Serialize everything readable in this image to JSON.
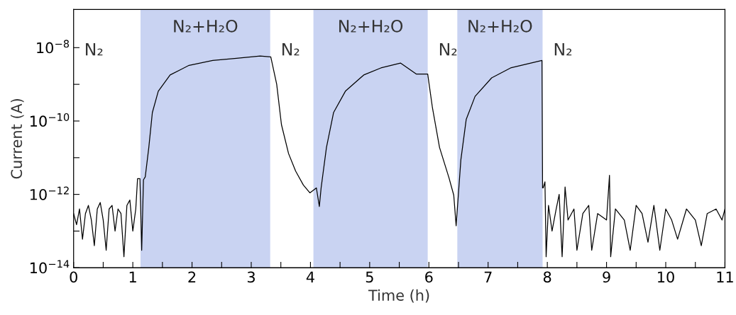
{
  "chart_data": {
    "type": "line",
    "xlabel": "Time (h)",
    "ylabel": "Current (A)",
    "log": "y",
    "xlim": [
      0,
      11
    ],
    "ylim": [
      1e-14,
      1.1e-07
    ],
    "xticks": [
      0,
      {
        "value": 0.5,
        "label": null
      },
      1,
      {
        "value": 1.5,
        "label": null
      },
      2,
      {
        "value": 2.5,
        "label": null
      },
      3,
      {
        "value": 3.5,
        "label": null
      },
      4,
      {
        "value": 4.5,
        "label": null
      },
      5,
      {
        "value": 5.5,
        "label": null
      },
      6,
      {
        "value": 6.5,
        "label": null
      },
      7,
      {
        "value": 7.5,
        "label": null
      },
      8,
      {
        "value": 8.5,
        "label": null
      },
      9,
      {
        "value": 9.5,
        "label": null
      },
      10,
      {
        "value": 10.5,
        "label": null
      },
      11
    ],
    "yticks": [
      {
        "value": 1e-14,
        "label": "10$^{−14}$"
      },
      {
        "value": 1e-13,
        "label": null
      },
      {
        "value": 1e-12,
        "label": "10$^{−12}$"
      },
      {
        "value": 1e-11,
        "label": null
      },
      {
        "value": 1e-10,
        "label": "10$^{−10}$"
      },
      {
        "value": 1e-09,
        "label": null
      },
      {
        "value": 1e-08,
        "label": "10$^{−8}$"
      }
    ],
    "grid": false,
    "legend": false,
    "bands": [
      {
        "axis": "x",
        "from": 1.13,
        "to": 3.32,
        "label": "N₂+H₂O",
        "color": "#c9d3f2"
      },
      {
        "axis": "x",
        "from": 4.05,
        "to": 5.98,
        "label": "N₂+H₂O",
        "color": "#c9d3f2"
      },
      {
        "axis": "x",
        "from": 6.48,
        "to": 7.92,
        "label": "N₂+H₂O",
        "color": "#c9d3f2"
      }
    ],
    "annotations": [
      "N₂",
      "N₂",
      "N₂",
      "N₂"
    ],
    "series": [
      {
        "color": "#000000",
        "x": [
          0.0,
          0.05,
          0.1,
          0.15,
          0.2,
          0.25,
          0.3,
          0.35,
          0.4,
          0.45,
          0.5,
          0.55,
          0.6,
          0.65,
          0.7,
          0.75,
          0.8,
          0.85,
          0.9,
          0.95,
          1.0,
          1.05,
          1.08,
          1.12,
          1.15,
          1.18,
          1.21,
          1.27,
          1.33,
          1.43,
          1.63,
          1.95,
          2.35,
          2.75,
          3.15,
          3.33,
          3.43,
          3.51,
          3.63,
          3.75,
          3.88,
          3.99,
          4.1,
          4.15,
          4.18,
          4.27,
          4.39,
          4.59,
          4.9,
          5.19,
          5.52,
          5.79,
          5.98,
          6.06,
          6.18,
          6.34,
          6.42,
          6.46,
          6.54,
          6.63,
          6.78,
          7.06,
          7.38,
          7.91,
          7.92,
          7.93,
          7.96,
          7.98,
          8.02,
          8.08,
          8.15,
          8.2,
          8.25,
          8.3,
          8.35,
          8.45,
          8.5,
          8.6,
          8.7,
          8.75,
          8.85,
          9.0,
          9.05,
          9.07,
          9.15,
          9.3,
          9.4,
          9.5,
          9.6,
          9.7,
          9.8,
          9.9,
          10.0,
          10.1,
          10.2,
          10.35,
          10.5,
          10.6,
          10.7,
          10.85,
          10.95,
          11.0
        ],
        "values": [
          3e-13,
          1.5e-13,
          4e-13,
          6e-14,
          3e-13,
          5e-13,
          2e-13,
          4e-14,
          4e-13,
          6e-13,
          2e-13,
          3e-14,
          4e-13,
          5e-13,
          1e-13,
          4e-13,
          3e-13,
          2e-14,
          5e-13,
          7e-13,
          1e-13,
          4e-13,
          2.7e-12,
          2.7e-12,
          3e-14,
          2.5e-12,
          3e-12,
          1.9e-11,
          1.7e-10,
          6.5e-10,
          1.8e-09,
          3.3e-09,
          4.5e-09,
          5.1e-09,
          5.9e-09,
          5.6e-09,
          1e-09,
          8e-11,
          1.3e-11,
          4.3e-12,
          1.8e-12,
          1.1e-12,
          1.5e-12,
          4.7e-13,
          1.5e-12,
          1.9e-11,
          1.7e-10,
          6.5e-10,
          1.8e-09,
          2.8e-09,
          3.8e-09,
          1.9e-09,
          1.9e-09,
          2.3e-10,
          1.9e-11,
          2.8e-12,
          9.5e-13,
          1.4e-13,
          8.7e-12,
          1.1e-10,
          4.7e-10,
          1.5e-09,
          2.8e-09,
          4.5e-09,
          1.5e-12,
          1.5e-12,
          2.2e-12,
          2e-14,
          5e-13,
          1e-13,
          4e-13,
          1e-12,
          2e-14,
          1.6e-12,
          2e-13,
          4e-13,
          3e-14,
          3e-13,
          5e-13,
          3e-14,
          3e-13,
          2e-13,
          3.3e-12,
          2e-14,
          4e-13,
          2e-13,
          3e-14,
          5e-13,
          3e-13,
          5e-14,
          5e-13,
          3e-14,
          4e-13,
          2e-13,
          6e-14,
          4e-13,
          2e-13,
          4e-14,
          3e-13,
          4e-13,
          2e-13,
          4e-13
        ]
      }
    ]
  }
}
